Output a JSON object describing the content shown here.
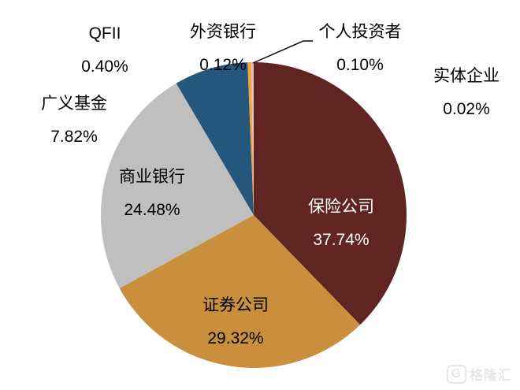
{
  "chart_data": {
    "type": "pie",
    "title": "",
    "start_angle_deg": 0,
    "direction": "clockwise",
    "legend": "none",
    "slices": [
      {
        "id": "insurance",
        "label": "保险公司",
        "value": 37.74,
        "display": "37.74%",
        "color": "#602523",
        "label_color": "#ffffff"
      },
      {
        "id": "securities",
        "label": "证券公司",
        "value": 29.32,
        "display": "29.32%",
        "color": "#C98F3C",
        "label_color": "#000000"
      },
      {
        "id": "commercial",
        "label": "商业银行",
        "value": 24.48,
        "display": "24.48%",
        "color": "#BFBFBF",
        "label_color": "#000000"
      },
      {
        "id": "funds",
        "label": "广义基金",
        "value": 7.82,
        "display": "7.82%",
        "color": "#25567B",
        "label_color": "#000000"
      },
      {
        "id": "qfii",
        "label": "QFII",
        "value": 0.4,
        "display": "0.40%",
        "color": "#F5A33C",
        "label_color": "#000000"
      },
      {
        "id": "foreign",
        "label": "外资银行",
        "value": 0.12,
        "display": "0.12%",
        "color": "#E9C1C0",
        "label_color": "#000000"
      },
      {
        "id": "individual",
        "label": "个人投资者",
        "value": 0.1,
        "display": "0.10%",
        "color": "#D8A5A4",
        "label_color": "#000000"
      },
      {
        "id": "real",
        "label": "实体企业",
        "value": 0.02,
        "display": "0.02%",
        "color": "#F3E0DF",
        "label_color": "#000000"
      }
    ]
  },
  "watermark": {
    "logo": "G",
    "text": "格隆汇"
  }
}
